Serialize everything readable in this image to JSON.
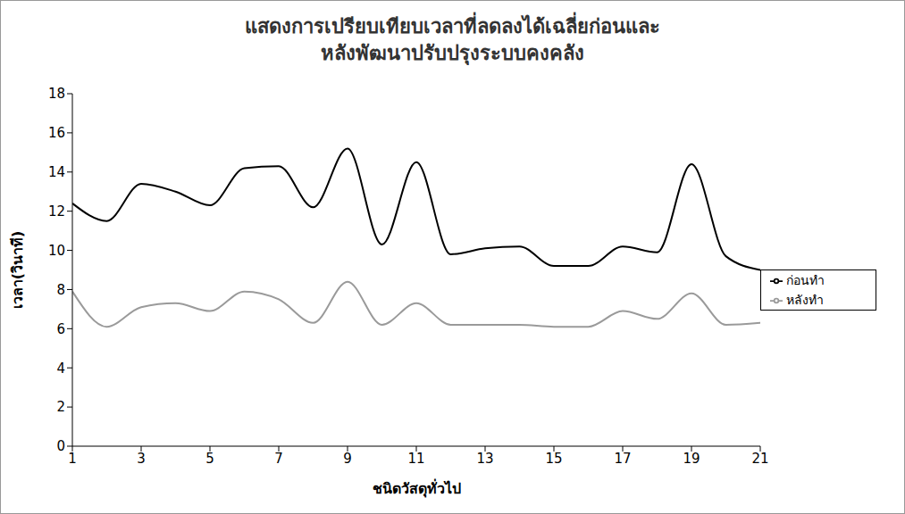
{
  "chart_data": {
    "type": "line",
    "title": "แสดงการเปรียบเทียบเวลาที่ลดลงได้เฉลี่ยก่อนและ\nหลังพัฒนาปรับปรุงระบบคงคลัง",
    "x_label": "ชนิดวัสดุทั่วไป",
    "y_label": "เวลา(วินาที)",
    "x": [
      1,
      2,
      3,
      4,
      5,
      6,
      7,
      8,
      9,
      10,
      11,
      12,
      13,
      14,
      15,
      16,
      17,
      18,
      19,
      20,
      21
    ],
    "series": [
      {
        "name": "ก่อนทำ",
        "color": "#000000",
        "line_style": "solid",
        "marker": "none",
        "values": [
          12.4,
          11.5,
          13.4,
          13.0,
          12.3,
          14.2,
          14.3,
          12.2,
          15.2,
          10.3,
          14.5,
          9.8,
          10.1,
          10.2,
          9.2,
          9.2,
          10.2,
          9.9,
          14.4,
          9.7,
          9.0
        ]
      },
      {
        "name": "หลังทำ",
        "color": "#9a9a9a",
        "line_style": "solid",
        "marker": "none",
        "values": [
          7.9,
          6.1,
          7.1,
          7.3,
          6.9,
          7.9,
          7.5,
          6.3,
          8.4,
          6.2,
          7.3,
          6.2,
          6.2,
          6.2,
          6.1,
          6.1,
          6.9,
          6.5,
          7.8,
          6.2,
          6.3
        ]
      }
    ],
    "xlim": [
      1,
      21
    ],
    "xticks": [
      1,
      3,
      5,
      7,
      9,
      11,
      13,
      15,
      17,
      19,
      21
    ],
    "ylim": [
      0,
      18
    ],
    "yticks": [
      0,
      2,
      4,
      6,
      8,
      10,
      12,
      14,
      16,
      18
    ],
    "grid": false,
    "legend": "right"
  }
}
